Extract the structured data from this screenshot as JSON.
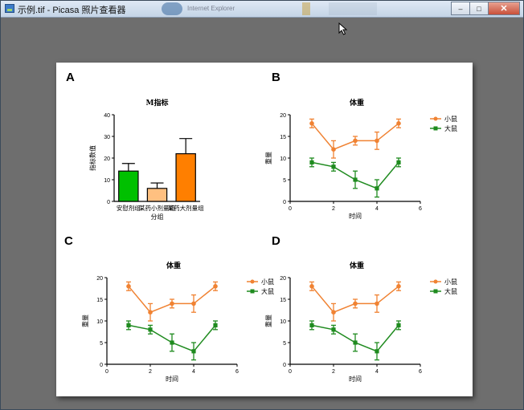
{
  "window": {
    "title": "示例.tif - Picasa 照片查看器",
    "background_task_label": "Internet Explorer",
    "controls": {
      "minimize": "–",
      "maximize": "□",
      "close": "✕"
    }
  },
  "colors": {
    "orange": "#f08232",
    "green": "#1f8b1f",
    "bar_green": "#00c000",
    "bar_peach": "#ffc080",
    "bar_orange": "#ff7f00"
  },
  "chart_data": [
    {
      "panel": "A",
      "type": "bar",
      "title": "M指标",
      "categories": [
        "安慰剂组",
        "某药小剂量组",
        "某药大剂量组"
      ],
      "values": [
        14,
        6,
        22
      ],
      "errors": [
        3.5,
        2.5,
        7
      ],
      "colors": [
        "#00c000",
        "#ffc080",
        "#ff7f00"
      ],
      "xlabel": "分组",
      "ylabel": "指标数值",
      "ylim": [
        0,
        40
      ],
      "yticks": [
        0,
        10,
        20,
        30,
        40
      ]
    },
    {
      "panel": "B",
      "type": "line",
      "title": "体重",
      "xlabel": "时间",
      "ylabel": "重量",
      "xlim": [
        0,
        6
      ],
      "ylim": [
        0,
        20
      ],
      "xticks": [
        0,
        2,
        4,
        6
      ],
      "yticks": [
        0,
        5,
        10,
        15,
        20
      ],
      "series": [
        {
          "name": "小鼠",
          "color": "#f08232",
          "marker": "circle",
          "x": [
            1,
            2,
            3,
            4,
            5
          ],
          "y": [
            18,
            12,
            14,
            14,
            18
          ],
          "err": [
            1,
            2,
            1,
            2,
            1
          ]
        },
        {
          "name": "大鼠",
          "color": "#1f8b1f",
          "marker": "square",
          "x": [
            1,
            2,
            3,
            4,
            5
          ],
          "y": [
            9,
            8,
            5,
            3,
            9
          ],
          "err": [
            1,
            1,
            2,
            2,
            1
          ]
        }
      ]
    },
    {
      "panel": "C",
      "type": "line",
      "title": "体重",
      "xlabel": "时间",
      "ylabel": "重量",
      "xlim": [
        0,
        6
      ],
      "ylim": [
        0,
        20
      ],
      "xticks": [
        0,
        2,
        4,
        6
      ],
      "yticks": [
        0,
        5,
        10,
        15,
        20
      ],
      "series": [
        {
          "name": "小鼠",
          "color": "#f08232",
          "marker": "circle",
          "x": [
            1,
            2,
            3,
            4,
            5
          ],
          "y": [
            18,
            12,
            14,
            14,
            18
          ],
          "err": [
            1,
            2,
            1,
            2,
            1
          ]
        },
        {
          "name": "大鼠",
          "color": "#1f8b1f",
          "marker": "square",
          "x": [
            1,
            2,
            3,
            4,
            5
          ],
          "y": [
            9,
            8,
            5,
            3,
            9
          ],
          "err": [
            1,
            1,
            2,
            2,
            1
          ]
        }
      ]
    },
    {
      "panel": "D",
      "type": "line",
      "title": "体重",
      "xlabel": "时间",
      "ylabel": "重量",
      "xlim": [
        0,
        6
      ],
      "ylim": [
        0,
        20
      ],
      "xticks": [
        0,
        2,
        4,
        6
      ],
      "yticks": [
        0,
        5,
        10,
        15,
        20
      ],
      "series": [
        {
          "name": "小鼠",
          "color": "#f08232",
          "marker": "circle",
          "x": [
            1,
            2,
            3,
            4,
            5
          ],
          "y": [
            18,
            12,
            14,
            14,
            18
          ],
          "err": [
            1,
            2,
            1,
            2,
            1
          ]
        },
        {
          "name": "大鼠",
          "color": "#1f8b1f",
          "marker": "square",
          "x": [
            1,
            2,
            3,
            4,
            5
          ],
          "y": [
            9,
            8,
            5,
            3,
            9
          ],
          "err": [
            1,
            1,
            2,
            2,
            1
          ]
        }
      ]
    }
  ]
}
